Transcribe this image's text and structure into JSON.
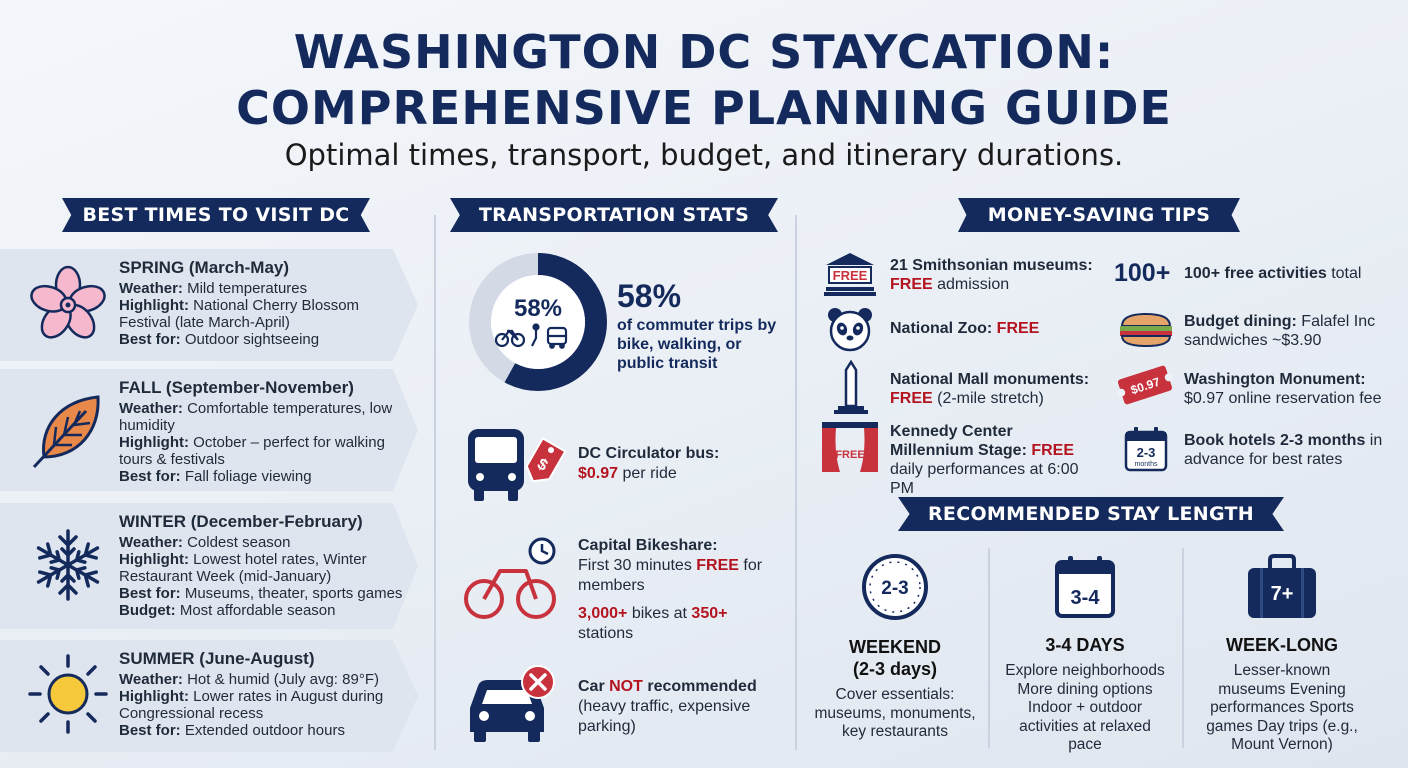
{
  "header": {
    "title_line1": "WASHINGTON DC STAYCATION:",
    "title_line2": "COMPREHENSIVE PLANNING GUIDE",
    "subtitle": "Optimal times, transport, budget, and itinerary durations."
  },
  "best_times": {
    "heading": "BEST TIMES TO VISIT DC",
    "seasons": [
      {
        "icon": "cherry-blossom-icon",
        "name": "SPRING (March-May)",
        "lines": [
          {
            "label": "Weather:",
            "text": " Mild temperatures"
          },
          {
            "label": "Highlight:",
            "text": " National Cherry Blossom Festival (late March-April)"
          },
          {
            "label": "Best for:",
            "text": " Outdoor sightseeing"
          }
        ]
      },
      {
        "icon": "autumn-leaf-icon",
        "name": "FALL (September-November)",
        "lines": [
          {
            "label": "Weather:",
            "text": " Comfortable temperatures, low humidity"
          },
          {
            "label": "Highlight:",
            "text": " October – perfect for walking tours & festivals"
          },
          {
            "label": "Best for:",
            "text": " Fall foliage viewing"
          }
        ]
      },
      {
        "icon": "snowflake-icon",
        "name": "WINTER (December-February)",
        "lines": [
          {
            "label": "Weather:",
            "text": " Coldest season"
          },
          {
            "label": "Highlight:",
            "text": " Lowest hotel rates, Winter Restaurant Week (mid-January)"
          },
          {
            "label": "Best for:",
            "text": " Museums, theater, sports games"
          },
          {
            "label": "Budget:",
            "text": " Most affordable season"
          }
        ]
      },
      {
        "icon": "sun-icon",
        "name": "SUMMER (June-August)",
        "lines": [
          {
            "label": "Weather:",
            "text": " Hot & humid (July avg: 89°F)"
          },
          {
            "label": "Highlight:",
            "text": " Lower rates in August during Congressional recess"
          },
          {
            "label": "Best for:",
            "text": " Extended outdoor hours"
          }
        ]
      }
    ]
  },
  "transport": {
    "heading": "TRANSPORTATION STATS",
    "donut_percent": 58,
    "donut_label": "58%",
    "stat_big": "58%",
    "stat_text": "of commuter trips by bike, walking, or public transit",
    "circulator": {
      "title": "DC Circulator bus:",
      "price": "$0.97",
      "rest": " per ride",
      "tag": "$"
    },
    "bikeshare": {
      "title": "Capital Bikeshare:",
      "line1_pre": "First 30 minutes ",
      "line1_free": "FREE",
      "line1_post": " for members",
      "bikes": "3,000+",
      "mid": " bikes at ",
      "stations": "350+",
      "end": " stations"
    },
    "car": {
      "pre": "Car ",
      "not": "NOT",
      "post": " recommended",
      "note": "(heavy traffic, expensive parking)"
    }
  },
  "money": {
    "heading": "MONEY-SAVING TIPS",
    "left": [
      {
        "icon": "museum-icon",
        "badge": "FREE",
        "bold": "21 Smithsonian museums:",
        "red": "FREE",
        "rest": " admission"
      },
      {
        "icon": "panda-icon",
        "bold": "National Zoo:",
        "red": " FREE",
        "rest": ""
      },
      {
        "icon": "monument-icon",
        "bold": "National Mall monuments:",
        "red": "FREE",
        "rest": " (2-mile stretch)"
      },
      {
        "icon": "theater-stage-icon",
        "badge": "FREE",
        "bold": "Kennedy Center Millennium Stage:",
        "red": " FREE",
        "rest": " daily performances at 6:00 PM"
      }
    ],
    "right": [
      {
        "icon": "100-plus",
        "big": "100+",
        "bold": "100+ free activities",
        "rest": " total"
      },
      {
        "icon": "sandwich-icon",
        "bold": "Budget dining:",
        "rest": " Falafel Inc sandwiches ~$3.90"
      },
      {
        "icon": "ticket-icon",
        "ticket": "$0.97",
        "bold": "Washington Monument:",
        "rest": " $0.97 online reservation fee"
      },
      {
        "icon": "calendar-icon",
        "cal": "2-3",
        "cal_sub": "months",
        "bold": "Book hotels 2-3 months",
        "rest": " in advance for best rates"
      }
    ]
  },
  "stay": {
    "heading": "RECOMMENDED STAY LENGTH",
    "options": [
      {
        "icon": "clock-icon",
        "badge": "2-3",
        "label": "WEEKEND\n(2-3 days)",
        "desc": "Cover essentials: museums, monuments, key restaurants"
      },
      {
        "icon": "calendar-icon",
        "badge": "3-4",
        "label": "3-4 DAYS",
        "desc": "Explore neighborhoods More dining options Indoor + outdoor activities at relaxed pace"
      },
      {
        "icon": "suitcase-icon",
        "badge": "7+",
        "label": "WEEK-LONG",
        "desc": "Lesser-known museums Evening performances Sports games Day trips (e.g., Mount Vernon)"
      }
    ]
  },
  "colors": {
    "navy": "#142a5c",
    "red": "#b3141f",
    "card": "#dfe5ee",
    "bg": "#eef2f7"
  }
}
